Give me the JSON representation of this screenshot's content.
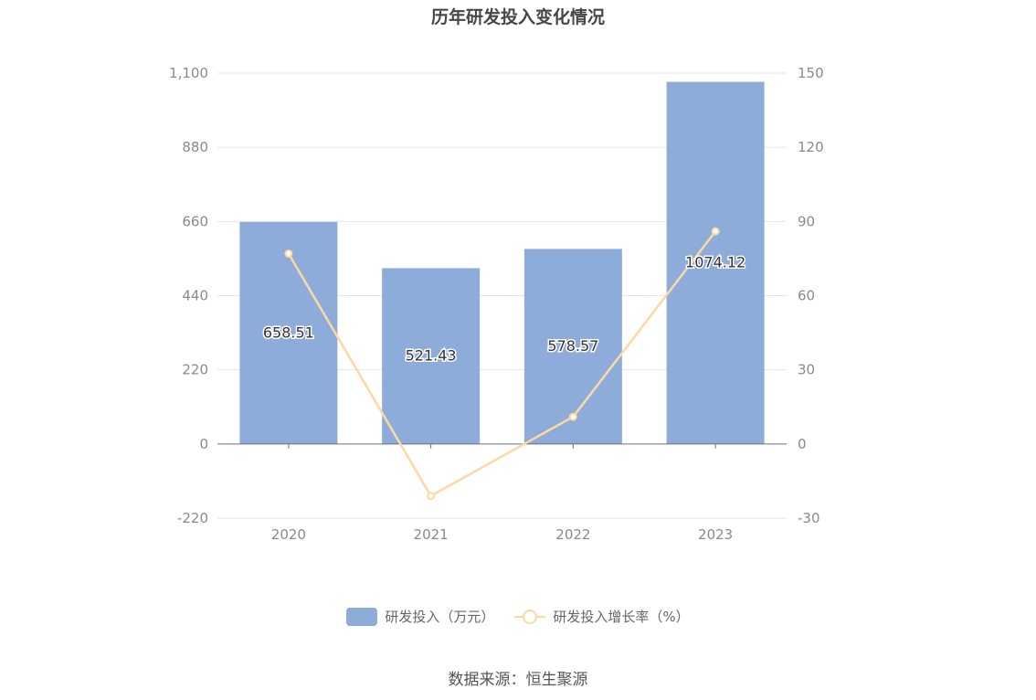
{
  "title": "历年研发投入变化情况",
  "source": "数据来源：恒生聚源",
  "legend": {
    "bar_label": "研发投入（万元）",
    "line_label": "研发投入增长率（%）"
  },
  "chart_data": {
    "type": "bar",
    "title": "历年研发投入变化情况",
    "categories": [
      "2020",
      "2021",
      "2022",
      "2023"
    ],
    "series": [
      {
        "name": "研发投入（万元）",
        "type": "bar",
        "axis": "left",
        "color": "#8eacda",
        "values": [
          658.51,
          521.43,
          578.57,
          1074.12
        ],
        "data_labels": [
          "658.51",
          "521.43",
          "578.57",
          "1074.12"
        ]
      },
      {
        "name": "研发投入增长率（%）",
        "type": "line",
        "axis": "right",
        "color": "#fcd9a1",
        "values": [
          77,
          -21,
          11,
          86
        ]
      }
    ],
    "y_left": {
      "ylim": [
        -220,
        1100
      ],
      "ticks": [
        -220,
        0,
        220,
        440,
        660,
        880,
        1100
      ],
      "tick_labels": [
        "-220",
        "0",
        "220",
        "440",
        "660",
        "880",
        "1,100"
      ]
    },
    "y_right": {
      "ylim": [
        -30,
        150
      ],
      "ticks": [
        -30,
        0,
        30,
        60,
        90,
        120,
        150
      ],
      "tick_labels": [
        "-30",
        "0",
        "30",
        "60",
        "90",
        "120",
        "150"
      ]
    },
    "grid": true,
    "legend_position": "bottom"
  }
}
